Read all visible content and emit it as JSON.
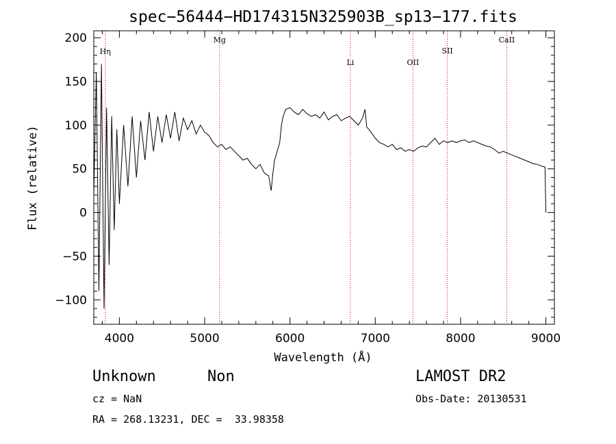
{
  "chart_data": {
    "type": "line",
    "title": "spec−56444−HD174315N325903B_sp13−177.fits",
    "xlabel": "Wavelength (Å)",
    "ylabel": "Flux (relative)",
    "xlim": [
      3700,
      9100
    ],
    "ylim": [
      -128,
      208
    ],
    "x_ticks": [
      4000,
      5000,
      6000,
      7000,
      8000,
      9000
    ],
    "x_tick_labels": [
      "4000",
      "5000",
      "6000",
      "7000",
      "8000",
      "9000"
    ],
    "y_ticks": [
      200,
      150,
      100,
      50,
      0,
      -50,
      -100
    ],
    "y_tick_labels": [
      "200",
      "150",
      "100",
      "50",
      "0",
      "−50",
      "−100"
    ],
    "grid": false,
    "line_color": "#000000",
    "marker_color": "#cc0000",
    "spectral_lines": [
      {
        "label": "Hη",
        "x": 3835
      },
      {
        "label": "Mg",
        "x": 5175
      },
      {
        "label": "Li",
        "x": 6708
      },
      {
        "label": "OII",
        "x": 7442
      },
      {
        "label": "SII",
        "x": 7845
      },
      {
        "label": "CaII",
        "x": 8542
      }
    ],
    "series": [
      {
        "x": [
          3700,
          3730,
          3760,
          3790,
          3820,
          3850,
          3880,
          3910,
          3940,
          3970,
          4000,
          4050,
          4100,
          4150,
          4200,
          4250,
          4300,
          4350,
          4400,
          4450,
          4500,
          4550,
          4600,
          4650,
          4700,
          4750,
          4800,
          4850,
          4900,
          4950,
          5000,
          5050,
          5100,
          5150,
          5200,
          5250,
          5300,
          5350,
          5400,
          5450,
          5500,
          5550,
          5600,
          5650,
          5700,
          5750,
          5780,
          5800,
          5820,
          5850,
          5880,
          5900,
          5920,
          5950,
          6000,
          6050,
          6100,
          6150,
          6200,
          6250,
          6300,
          6350,
          6400,
          6450,
          6500,
          6550,
          6600,
          6650,
          6700,
          6750,
          6800,
          6850,
          6880,
          6900,
          6950,
          7000,
          7050,
          7100,
          7150,
          7200,
          7250,
          7300,
          7350,
          7400,
          7450,
          7500,
          7550,
          7600,
          7650,
          7700,
          7750,
          7800,
          7850,
          7900,
          7950,
          8000,
          8050,
          8100,
          8150,
          8200,
          8250,
          8300,
          8350,
          8400,
          8450,
          8500,
          8550,
          8600,
          8650,
          8700,
          8750,
          8800,
          8850,
          8900,
          8950,
          8990,
          9000
        ],
        "y": [
          20,
          160,
          -90,
          170,
          -110,
          120,
          -60,
          110,
          -20,
          95,
          10,
          100,
          30,
          110,
          40,
          105,
          60,
          115,
          70,
          110,
          80,
          112,
          85,
          115,
          82,
          108,
          95,
          105,
          90,
          100,
          92,
          88,
          80,
          75,
          78,
          72,
          75,
          70,
          65,
          60,
          62,
          55,
          50,
          55,
          45,
          42,
          25,
          45,
          60,
          70,
          80,
          100,
          110,
          118,
          120,
          115,
          112,
          118,
          113,
          110,
          112,
          108,
          115,
          106,
          110,
          112,
          105,
          108,
          110,
          105,
          100,
          108,
          118,
          98,
          92,
          85,
          80,
          78,
          75,
          78,
          72,
          74,
          70,
          72,
          70,
          74,
          76,
          75,
          80,
          85,
          78,
          82,
          80,
          82,
          80,
          82,
          83,
          80,
          82,
          80,
          78,
          76,
          75,
          72,
          68,
          70,
          68,
          66,
          64,
          62,
          60,
          58,
          56,
          55,
          53,
          52,
          0
        ]
      }
    ]
  },
  "info": {
    "object_class": "Unknown",
    "subclass": "Non",
    "survey": "LAMOST DR2",
    "cz": "cz = NaN",
    "obs_date": "Obs-Date: 20130531",
    "radec": "RA = 268.13231, DEC =  33.98358"
  }
}
